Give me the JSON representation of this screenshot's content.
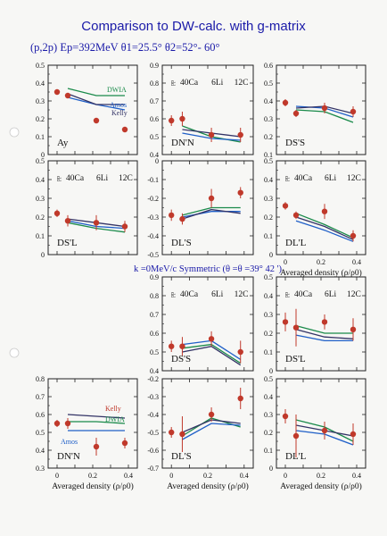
{
  "page": {
    "title": "Comparison to DW-calc. with g-matrix",
    "subtitle": "(p,2p)  Ep=392MeV  θ1=25.5°  θ2=52°- 60°",
    "kinematics_note": "k =0MeV/c  Symmetric (θ =θ =39° 42 ')",
    "x_axis_label": "Averaged density (ρ/ρ0)",
    "target_labels": [
      "40Ca",
      "6Li",
      "12C"
    ],
    "pp_label": "pp",
    "colors": {
      "data": "#c0392b",
      "DWIA": "#1a8a4a",
      "Amos": "#2060c8",
      "Kelly": "#333366",
      "text": "#1a1aa8",
      "axis": "#222222"
    }
  },
  "chart_data": [
    {
      "type": "scatter",
      "panel": "Ay",
      "xticks": [],
      "ylim": [
        0,
        0.5
      ],
      "yticks": [
        "0",
        "0.1",
        "0.2",
        "0.3",
        "0.4",
        "0.5"
      ],
      "series": [
        {
          "name": "data",
          "x": [
            0,
            0.06,
            0.22,
            0.38
          ],
          "y": [
            0.35,
            0.33,
            0.19,
            0.14
          ],
          "err": [
            0,
            0,
            0,
            0
          ]
        },
        {
          "name": "DWIA",
          "x": [
            0.06,
            0.22,
            0.38
          ],
          "y": [
            0.37,
            0.33,
            0.33
          ]
        },
        {
          "name": "Amos",
          "x": [
            0.06,
            0.22,
            0.38
          ],
          "y": [
            0.32,
            0.28,
            0.25
          ]
        },
        {
          "name": "Kelly",
          "x": [
            0.06,
            0.22,
            0.38
          ],
          "y": [
            0.34,
            0.28,
            0.28
          ]
        }
      ],
      "annotations": [
        {
          "text": "DWIA"
        },
        {
          "text": "Amos"
        },
        {
          "text": "Kelly"
        }
      ],
      "label": "Ay"
    },
    {
      "type": "scatter",
      "panel": "DN'N",
      "xticks": [],
      "ylim": [
        0.4,
        0.9
      ],
      "yticks": [
        "0.4",
        "0.5",
        "0.6",
        "0.7",
        "0.8",
        "0.9"
      ],
      "series": [
        {
          "name": "data",
          "x": [
            0,
            0.06,
            0.22,
            0.38
          ],
          "y": [
            0.59,
            0.6,
            0.51,
            0.51
          ],
          "err": [
            0.03,
            0.04,
            0.04,
            0.04
          ]
        },
        {
          "name": "DWIA",
          "x": [
            0.06,
            0.22,
            0.38
          ],
          "y": [
            0.56,
            0.5,
            0.47
          ]
        },
        {
          "name": "Amos",
          "x": [
            0.06,
            0.22,
            0.38
          ],
          "y": [
            0.52,
            0.49,
            0.48
          ]
        },
        {
          "name": "Kelly",
          "x": [
            0.06,
            0.22,
            0.38
          ],
          "y": [
            0.54,
            0.52,
            0.5
          ]
        }
      ],
      "label": "DN'N",
      "targets": true
    },
    {
      "type": "scatter",
      "panel": "DS'S",
      "xticks": [],
      "ylim": [
        0.1,
        0.6
      ],
      "yticks": [
        "0.1",
        "0.2",
        "0.3",
        "0.4",
        "0.5",
        "0.6"
      ],
      "series": [
        {
          "name": "data",
          "x": [
            0,
            0.06,
            0.22,
            0.38
          ],
          "y": [
            0.39,
            0.33,
            0.36,
            0.34
          ],
          "err": [
            0.02,
            0.02,
            0.03,
            0.03
          ]
        },
        {
          "name": "DWIA",
          "x": [
            0.06,
            0.22,
            0.38
          ],
          "y": [
            0.35,
            0.34,
            0.28
          ]
        },
        {
          "name": "Amos",
          "x": [
            0.06,
            0.22,
            0.38
          ],
          "y": [
            0.37,
            0.36,
            0.31
          ]
        },
        {
          "name": "Kelly",
          "x": [
            0.06,
            0.22,
            0.38
          ],
          "y": [
            0.36,
            0.37,
            0.33
          ]
        }
      ],
      "label": "DS'S"
    },
    {
      "type": "scatter",
      "panel": "DS'L",
      "xticks": [],
      "ylim": [
        0,
        0.5
      ],
      "yticks": [
        "0",
        "0.1",
        "0.2",
        "0.3",
        "0.4",
        "0.5"
      ],
      "series": [
        {
          "name": "data",
          "x": [
            0,
            0.06,
            0.22,
            0.38
          ],
          "y": [
            0.22,
            0.18,
            0.17,
            0.15
          ],
          "err": [
            0.02,
            0.03,
            0.04,
            0.03
          ]
        },
        {
          "name": "DWIA",
          "x": [
            0.06,
            0.22,
            0.38
          ],
          "y": [
            0.17,
            0.14,
            0.12
          ]
        },
        {
          "name": "Amos",
          "x": [
            0.06,
            0.22,
            0.38
          ],
          "y": [
            0.18,
            0.15,
            0.14
          ]
        },
        {
          "name": "Kelly",
          "x": [
            0.06,
            0.22,
            0.38
          ],
          "y": [
            0.19,
            0.17,
            0.15
          ]
        }
      ],
      "label": "DS'L",
      "targets": true
    },
    {
      "type": "scatter",
      "panel": "DL'S",
      "xticks": [],
      "ylim": [
        -0.5,
        0
      ],
      "yticks": [
        "-0.5",
        "-0.4",
        "-0.3",
        "-0.2",
        "-0.1",
        "0"
      ],
      "series": [
        {
          "name": "data",
          "x": [
            0,
            0.06,
            0.22,
            0.38
          ],
          "y": [
            -0.29,
            -0.31,
            -0.2,
            -0.17
          ],
          "err": [
            0.03,
            0.03,
            0.05,
            0.03
          ]
        },
        {
          "name": "DWIA",
          "x": [
            0.06,
            0.22,
            0.38
          ],
          "y": [
            -0.29,
            -0.25,
            -0.25
          ]
        },
        {
          "name": "Amos",
          "x": [
            0.06,
            0.22,
            0.38
          ],
          "y": [
            -0.3,
            -0.27,
            -0.27
          ]
        },
        {
          "name": "Kelly",
          "x": [
            0.06,
            0.22,
            0.38
          ],
          "y": [
            -0.31,
            -0.26,
            -0.28
          ]
        }
      ],
      "label": "DL'S"
    },
    {
      "type": "scatter",
      "panel": "DL'L",
      "xticks": [
        "0",
        "0.2",
        "0.4"
      ],
      "ylim": [
        0,
        0.5
      ],
      "yticks": [
        "0",
        "0.1",
        "0.2",
        "0.3",
        "0.4",
        "0.5"
      ],
      "series": [
        {
          "name": "data",
          "x": [
            0,
            0.06,
            0.22,
            0.38
          ],
          "y": [
            0.26,
            0.21,
            0.23,
            0.1
          ],
          "err": [
            0.02,
            0.02,
            0.04,
            0.03
          ]
        },
        {
          "name": "DWIA",
          "x": [
            0.06,
            0.22,
            0.38
          ],
          "y": [
            0.22,
            0.16,
            0.09
          ]
        },
        {
          "name": "Amos",
          "x": [
            0.06,
            0.22,
            0.38
          ],
          "y": [
            0.18,
            0.13,
            0.07
          ]
        },
        {
          "name": "Kelly",
          "x": [
            0.06,
            0.22,
            0.38
          ],
          "y": [
            0.2,
            0.15,
            0.08
          ]
        }
      ],
      "label": "DL'L",
      "targets": true
    },
    {
      "type": "scatter",
      "panel": "DS'S (k=0)",
      "xticks": [],
      "ylim": [
        0.4,
        0.9
      ],
      "yticks": [
        "0.4",
        "0.5",
        "0.6",
        "0.7",
        "0.8",
        "0.9"
      ],
      "series": [
        {
          "name": "data",
          "x": [
            0,
            0.06,
            0.22,
            0.38
          ],
          "y": [
            0.53,
            0.53,
            0.57,
            0.5
          ],
          "err": [
            0.03,
            0.05,
            0.04,
            0.06
          ]
        },
        {
          "name": "DWIA",
          "x": [
            0.06,
            0.22,
            0.38
          ],
          "y": [
            0.52,
            0.54,
            0.44
          ]
        },
        {
          "name": "Amos",
          "x": [
            0.06,
            0.22,
            0.38
          ],
          "y": [
            0.54,
            0.56,
            0.46
          ]
        },
        {
          "name": "Kelly",
          "x": [
            0.06,
            0.22,
            0.38
          ],
          "y": [
            0.5,
            0.53,
            0.43
          ]
        }
      ],
      "label": "DS'S",
      "targets": true
    },
    {
      "type": "scatter",
      "panel": "DS'L (k=0)",
      "xticks": [],
      "ylim": [
        0,
        0.5
      ],
      "yticks": [
        "0",
        "0.1",
        "0.2",
        "0.3",
        "0.4",
        "0.5"
      ],
      "series": [
        {
          "name": "data",
          "x": [
            0,
            0.06,
            0.22,
            0.38
          ],
          "y": [
            0.26,
            0.23,
            0.26,
            0.22
          ],
          "err": [
            0.05,
            0.1,
            0.04,
            0.06
          ]
        },
        {
          "name": "DWIA",
          "x": [
            0.06,
            0.22,
            0.38
          ],
          "y": [
            0.24,
            0.2,
            0.2
          ]
        },
        {
          "name": "Amos",
          "x": [
            0.06,
            0.22,
            0.38
          ],
          "y": [
            0.19,
            0.16,
            0.16
          ]
        },
        {
          "name": "Kelly",
          "x": [
            0.06,
            0.22,
            0.38
          ],
          "y": [
            0.22,
            0.18,
            0.17
          ]
        }
      ],
      "label": "DS'L",
      "targets": true
    },
    {
      "type": "scatter",
      "panel": "DN'N (k=0)",
      "xticks": [
        "0",
        "0.2",
        "0.4"
      ],
      "ylim": [
        0.3,
        0.8
      ],
      "yticks": [
        "0.3",
        "0.4",
        "0.5",
        "0.6",
        "0.7",
        "0.8"
      ],
      "series": [
        {
          "name": "data",
          "x": [
            0,
            0.06,
            0.22,
            0.38
          ],
          "y": [
            0.55,
            0.55,
            0.42,
            0.44
          ],
          "err": [
            0.02,
            0.03,
            0.05,
            0.03
          ]
        },
        {
          "name": "Kelly",
          "x": [
            0.06,
            0.22,
            0.38
          ],
          "y": [
            0.6,
            0.59,
            0.58
          ]
        },
        {
          "name": "DWIA",
          "x": [
            0.06,
            0.22,
            0.38
          ],
          "y": [
            0.56,
            0.56,
            0.55
          ]
        },
        {
          "name": "Amos",
          "x": [
            0.06,
            0.22,
            0.38
          ],
          "y": [
            0.51,
            0.51,
            0.51
          ]
        }
      ],
      "annotations": [
        {
          "text": "Kelly"
        },
        {
          "text": "DWIA"
        },
        {
          "text": "Amos"
        }
      ],
      "label": "DN'N"
    },
    {
      "type": "scatter",
      "panel": "DL'S (k=0)",
      "xticks": [
        "0",
        "0.2",
        "0.4"
      ],
      "ylim": [
        -0.7,
        -0.2
      ],
      "yticks": [
        "-0.7",
        "-0.6",
        "-0.5",
        "-0.4",
        "-0.3",
        "-0.2"
      ],
      "series": [
        {
          "name": "data",
          "x": [
            0,
            0.06,
            0.22,
            0.38
          ],
          "y": [
            -0.5,
            -0.51,
            -0.4,
            -0.31
          ],
          "err": [
            0.03,
            0.1,
            0.04,
            0.06
          ]
        },
        {
          "name": "DWIA",
          "x": [
            0.06,
            0.22,
            0.38
          ],
          "y": [
            -0.52,
            -0.42,
            -0.47
          ]
        },
        {
          "name": "Amos",
          "x": [
            0.06,
            0.22,
            0.38
          ],
          "y": [
            -0.54,
            -0.45,
            -0.46
          ]
        },
        {
          "name": "Kelly",
          "x": [
            0.06,
            0.22,
            0.38
          ],
          "y": [
            -0.5,
            -0.43,
            -0.45
          ]
        }
      ],
      "label": "DL'S"
    },
    {
      "type": "scatter",
      "panel": "DL'L (k=0)",
      "xticks": [
        "0",
        "0.2",
        "0.4"
      ],
      "ylim": [
        0,
        0.5
      ],
      "yticks": [
        "0",
        "0.1",
        "0.2",
        "0.3",
        "0.4",
        "0.5"
      ],
      "series": [
        {
          "name": "data",
          "x": [
            0,
            0.06,
            0.22,
            0.38
          ],
          "y": [
            0.29,
            0.18,
            0.21,
            0.19
          ],
          "err": [
            0.04,
            0.12,
            0.05,
            0.06
          ]
        },
        {
          "name": "DWIA",
          "x": [
            0.06,
            0.22,
            0.38
          ],
          "y": [
            0.27,
            0.23,
            0.15
          ]
        },
        {
          "name": "Amos",
          "x": [
            0.06,
            0.22,
            0.38
          ],
          "y": [
            0.21,
            0.19,
            0.13
          ]
        },
        {
          "name": "Kelly",
          "x": [
            0.06,
            0.22,
            0.38
          ],
          "y": [
            0.24,
            0.21,
            0.18
          ]
        }
      ],
      "label": "DL'L"
    }
  ]
}
